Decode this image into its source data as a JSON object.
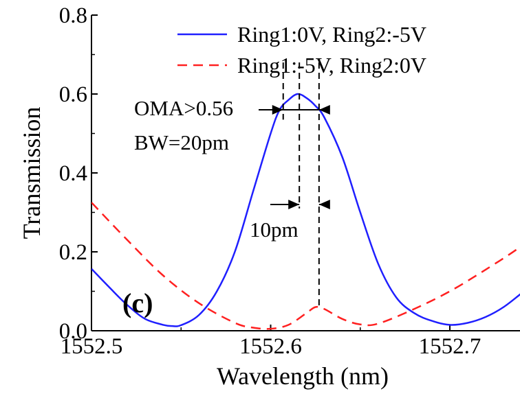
{
  "chart_data": {
    "type": "line",
    "xlabel": "Wavelength (nm)",
    "ylabel": "Transmission",
    "xlim": [
      1552.5,
      1552.75
    ],
    "ylim": [
      0.0,
      0.8
    ],
    "x_ticks": [
      1552.5,
      1552.6,
      1552.7
    ],
    "x_tick_labels": [
      "1552.5",
      "1552.6",
      "1552.7"
    ],
    "y_ticks": [
      0.0,
      0.2,
      0.4,
      0.6,
      0.8
    ],
    "y_tick_labels": [
      "0.0",
      "0.2",
      "0.4",
      "0.6",
      "0.8"
    ],
    "grid": false,
    "legend_position": "top-right",
    "series": [
      {
        "name": "Ring1:0V, Ring2:-5V",
        "color": "#1f1fff",
        "style": "solid",
        "x": [
          1552.5,
          1552.51,
          1552.52,
          1552.53,
          1552.54,
          1552.545,
          1552.55,
          1552.56,
          1552.57,
          1552.58,
          1552.59,
          1552.6,
          1552.605,
          1552.61,
          1552.615,
          1552.62,
          1552.625,
          1552.63,
          1552.64,
          1552.65,
          1552.66,
          1552.67,
          1552.68,
          1552.69,
          1552.7,
          1552.71,
          1552.72,
          1552.73,
          1552.74,
          1552.75
        ],
        "y": [
          0.157,
          0.11,
          0.065,
          0.03,
          0.015,
          0.012,
          0.014,
          0.04,
          0.1,
          0.2,
          0.35,
          0.5,
          0.56,
          0.585,
          0.6,
          0.59,
          0.57,
          0.54,
          0.44,
          0.3,
          0.17,
          0.085,
          0.045,
          0.025,
          0.015,
          0.02,
          0.035,
          0.06,
          0.095,
          0.13
        ]
      },
      {
        "name": "Ring1:-5V, Ring2:0V",
        "color": "#ff2020",
        "style": "dashed",
        "x": [
          1552.5,
          1552.52,
          1552.54,
          1552.56,
          1552.58,
          1552.59,
          1552.6,
          1552.61,
          1552.62,
          1552.625,
          1552.63,
          1552.64,
          1552.65,
          1552.66,
          1552.68,
          1552.7,
          1552.72,
          1552.74,
          1552.75
        ],
        "y": [
          0.325,
          0.23,
          0.14,
          0.07,
          0.02,
          0.008,
          0.005,
          0.015,
          0.045,
          0.06,
          0.055,
          0.03,
          0.016,
          0.018,
          0.055,
          0.1,
          0.155,
          0.215,
          0.258
        ]
      }
    ],
    "annotations": {
      "oma": "OMA>0.56",
      "bw": "BW=20pm",
      "spacing": "10pm",
      "panel": "(c)",
      "dashed_markers_x": [
        1552.607,
        1552.616,
        1552.627
      ],
      "oma_level": 0.56,
      "spacing_level": 0.32
    }
  }
}
